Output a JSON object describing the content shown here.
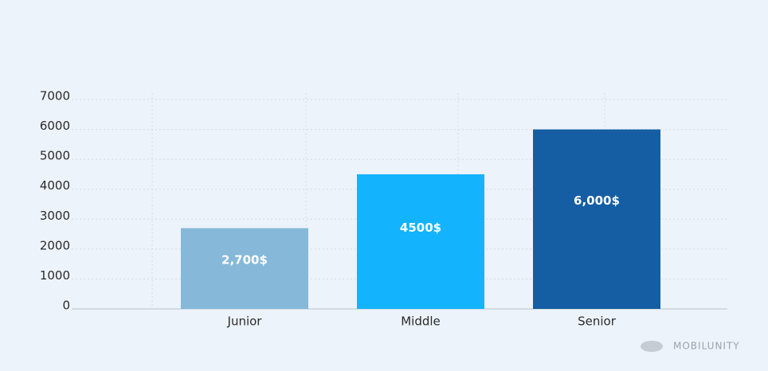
{
  "chart_data": {
    "type": "bar",
    "categories": [
      "Junior",
      "Middle",
      "Senior"
    ],
    "values": [
      2700,
      4500,
      6000
    ],
    "value_labels": [
      "2,700$",
      "4500$",
      "6,000$"
    ],
    "colors": [
      "#86b9d9",
      "#14b3fd",
      "#155ea3"
    ],
    "ylim": [
      0,
      7000
    ],
    "yticks": [
      0,
      1000,
      2000,
      3000,
      4000,
      5000,
      6000,
      7000
    ],
    "grid": true,
    "watermark": "MOBILUNITY"
  }
}
